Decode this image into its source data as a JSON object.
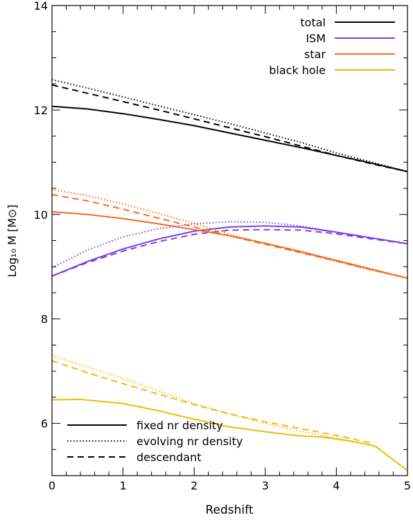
{
  "chart_data": {
    "type": "line",
    "xlabel": "Redshift",
    "ylabel": "Log₁₀ M  [M⊙]",
    "xlim": [
      0,
      5
    ],
    "ylim": [
      5,
      14
    ],
    "xticks": [
      0,
      1,
      2,
      3,
      4,
      5
    ],
    "xtick_labels": [
      "0",
      "1",
      "2",
      "3",
      "4",
      "5"
    ],
    "yticks": [
      6,
      8,
      10,
      12,
      14
    ],
    "ytick_labels": [
      "6",
      "8",
      "10",
      "12",
      "14"
    ],
    "grid": false,
    "legend_components": {
      "placement": "top-right",
      "entries": [
        {
          "label": "total",
          "color": "#000000"
        },
        {
          "label": "ISM",
          "color": "#7B3FE0"
        },
        {
          "label": "star",
          "color": "#F26A1B"
        },
        {
          "label": "black hole",
          "color": "#F5B800"
        }
      ]
    },
    "legend_styles": {
      "placement": "bottom-left",
      "entries": [
        {
          "label": "fixed nr density",
          "style": "solid"
        },
        {
          "label": "evolving nr density",
          "style": "dotted"
        },
        {
          "label": "descendant",
          "style": "dashed"
        }
      ]
    },
    "series": [
      {
        "component": "total",
        "style": "solid",
        "color": "#000000",
        "x": [
          0,
          0.5,
          1,
          1.5,
          2,
          2.5,
          3,
          3.5,
          4,
          4.5,
          5
        ],
        "y": [
          12.07,
          12.02,
          11.93,
          11.82,
          11.7,
          11.56,
          11.42,
          11.28,
          11.13,
          10.98,
          10.82
        ]
      },
      {
        "component": "total",
        "style": "dotted",
        "color": "#000000",
        "x": [
          0,
          0.5,
          1,
          1.5,
          2,
          2.5,
          3,
          3.5,
          4,
          4.5,
          5
        ],
        "y": [
          12.58,
          12.42,
          12.25,
          12.08,
          11.91,
          11.74,
          11.56,
          11.38,
          11.18,
          11.0,
          10.82
        ]
      },
      {
        "component": "total",
        "style": "dashed",
        "color": "#000000",
        "x": [
          0,
          0.5,
          1,
          1.5,
          2,
          2.5,
          3,
          3.5,
          4,
          4.5,
          5
        ],
        "y": [
          12.48,
          12.32,
          12.16,
          12.0,
          11.83,
          11.66,
          11.49,
          11.31,
          11.13,
          10.97,
          10.82
        ]
      },
      {
        "component": "ISM",
        "style": "solid",
        "color": "#7B3FE0",
        "x": [
          0,
          0.5,
          1,
          1.5,
          2,
          2.5,
          3,
          3.5,
          4,
          4.5,
          5
        ],
        "y": [
          8.82,
          9.1,
          9.34,
          9.53,
          9.68,
          9.76,
          9.78,
          9.76,
          9.66,
          9.55,
          9.44
        ]
      },
      {
        "component": "ISM",
        "style": "dotted",
        "color": "#7B3FE0",
        "x": [
          0,
          0.5,
          1,
          1.5,
          2,
          2.5,
          3,
          3.5,
          4,
          4.5,
          5
        ],
        "y": [
          8.98,
          9.32,
          9.57,
          9.73,
          9.82,
          9.86,
          9.85,
          9.78,
          9.66,
          9.55,
          9.44
        ]
      },
      {
        "component": "ISM",
        "style": "dashed",
        "color": "#7B3FE0",
        "x": [
          0,
          0.5,
          1,
          1.5,
          2,
          2.5,
          3,
          3.5,
          4,
          4.5,
          5
        ],
        "y": [
          8.82,
          9.08,
          9.3,
          9.48,
          9.62,
          9.7,
          9.71,
          9.7,
          9.63,
          9.53,
          9.44
        ]
      },
      {
        "component": "star",
        "style": "solid",
        "color": "#F26A1B",
        "x": [
          0,
          0.5,
          1,
          1.5,
          2,
          2.5,
          3,
          3.5,
          4,
          4.5,
          5
        ],
        "y": [
          10.05,
          10.0,
          9.92,
          9.82,
          9.71,
          9.59,
          9.45,
          9.29,
          9.12,
          8.95,
          8.78
        ]
      },
      {
        "component": "star",
        "style": "dotted",
        "color": "#F26A1B",
        "x": [
          0,
          0.5,
          1,
          1.5,
          2,
          2.5,
          3,
          3.5,
          4,
          4.5,
          5
        ],
        "y": [
          10.48,
          10.36,
          10.2,
          10.02,
          9.83,
          9.62,
          9.44,
          9.27,
          9.1,
          8.93,
          8.78
        ]
      },
      {
        "component": "star",
        "style": "dashed",
        "color": "#F26A1B",
        "x": [
          0,
          0.5,
          1,
          1.5,
          2,
          2.5,
          3,
          3.5,
          4,
          4.5,
          5
        ],
        "y": [
          10.38,
          10.26,
          10.1,
          9.93,
          9.76,
          9.59,
          9.43,
          9.27,
          9.11,
          8.94,
          8.78
        ]
      },
      {
        "component": "black hole",
        "style": "solid",
        "color": "#F5B800",
        "x": [
          0,
          0.4,
          1,
          1.5,
          2,
          2.5,
          3,
          3.5,
          3.8,
          4.2,
          4.5,
          4.55,
          5
        ],
        "y": [
          6.45,
          6.46,
          6.38,
          6.24,
          6.08,
          5.93,
          5.84,
          5.76,
          5.74,
          5.66,
          5.58,
          5.56,
          5.1
        ]
      },
      {
        "component": "black hole",
        "style": "dotted",
        "color": "#F5B800",
        "x": [
          0,
          0.5,
          1,
          1.5,
          2,
          2.5,
          3,
          3.5,
          4,
          4.5
        ],
        "y": [
          7.3,
          7.08,
          6.86,
          6.62,
          6.38,
          6.18,
          6.0,
          5.85,
          5.72,
          5.58
        ]
      },
      {
        "component": "black hole",
        "style": "dashed",
        "color": "#F5B800",
        "x": [
          0,
          0.5,
          1,
          1.5,
          2,
          2.5,
          3,
          3.5,
          4,
          4.5
        ],
        "y": [
          7.2,
          6.97,
          6.76,
          6.56,
          6.36,
          6.18,
          6.03,
          5.9,
          5.77,
          5.62
        ]
      }
    ]
  }
}
